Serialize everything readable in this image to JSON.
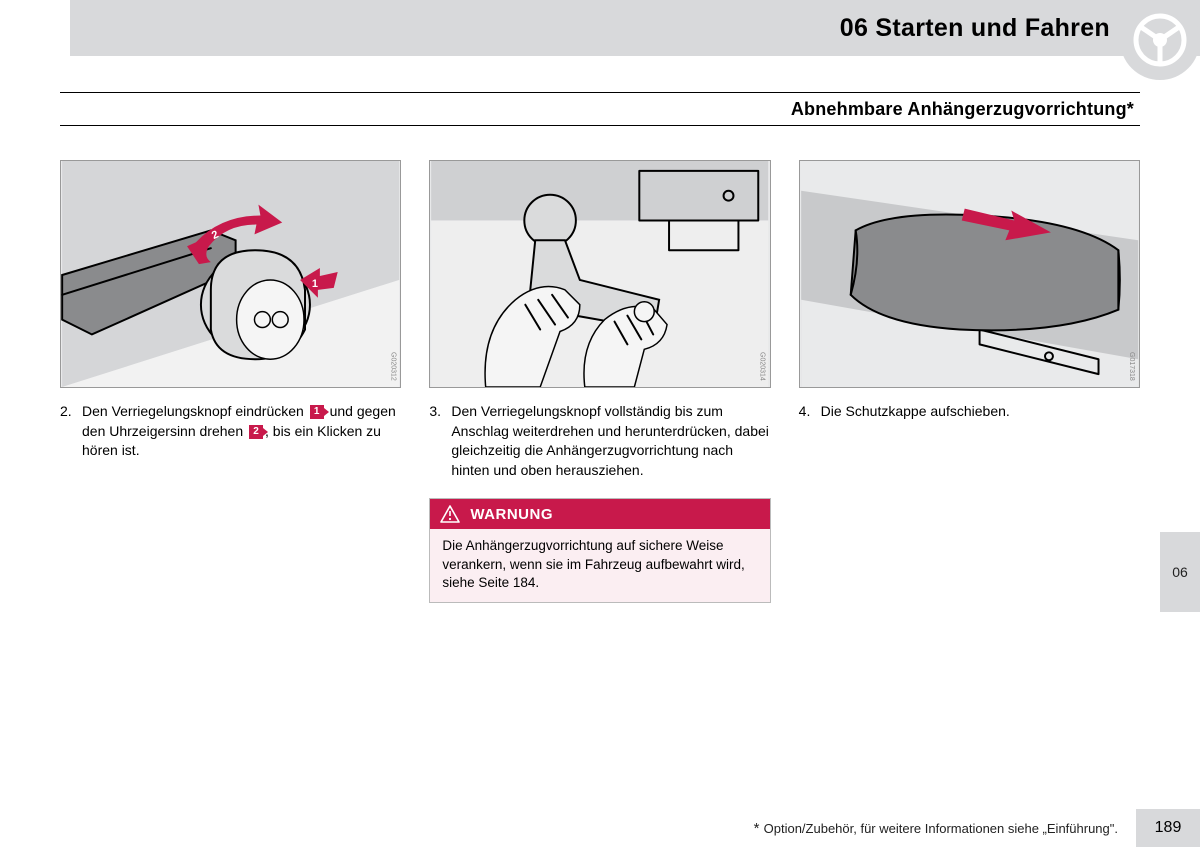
{
  "header": {
    "chapter": "06 Starten und Fahren"
  },
  "subtitle": "Abnehmbare Anhängerzugvorrichtung*",
  "sidetab": "06",
  "colors": {
    "accent_red": "#c8194b",
    "panel_gray": "#d8d9db",
    "warn_bg": "#fbeef2"
  },
  "steps": [
    {
      "n": "2.",
      "parts": [
        {
          "t": "Den Verriegelungsknopf eindrücken "
        },
        {
          "badge": "1"
        },
        {
          "t": " und gegen den Uhrzeigersinn drehen "
        },
        {
          "badge": "2"
        },
        {
          "t": ", bis ein Klicken zu hören ist."
        }
      ],
      "figref": "G020312"
    },
    {
      "n": "3.",
      "text": "Den Verriegelungsknopf vollständig bis zum Anschlag weiterdrehen und herunterdrücken, dabei gleichzeitig die Anhängerzugvorrichtung nach hinten und oben herausziehen.",
      "figref": "G020314"
    },
    {
      "n": "4.",
      "text": "Die Schutzkappe aufschieben.",
      "figref": "G017318"
    }
  ],
  "warning": {
    "label": "WARNUNG",
    "body": "Die Anhängerzugvorrichtung auf sichere Weise verankern, wenn sie im Fahrzeug aufbewahrt wird, siehe Seite 184."
  },
  "footer": {
    "note_prefix": "* ",
    "note": "Option/Zubehör, für weitere Informationen siehe „Einführung\".",
    "page": "189"
  }
}
